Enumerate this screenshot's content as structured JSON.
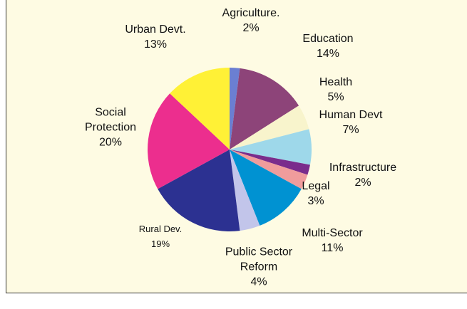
{
  "chart_data": {
    "type": "pie",
    "categories": [
      "Agriculture.",
      "Education",
      "Health",
      "Human Devt",
      "Infrastructure",
      "Legal",
      "Multi-Sector",
      "Public Sector Reform",
      "Rural Dev.",
      "Social Protection",
      "Urban Devt."
    ],
    "values": [
      2,
      14,
      5,
      7,
      2,
      3,
      11,
      4,
      19,
      20,
      13
    ],
    "value_labels": [
      "2%",
      "14%",
      "5%",
      "7%",
      "2%",
      "3%",
      "11%",
      "4%",
      "19%",
      "20%",
      "13%"
    ],
    "colors": [
      "#6b7fd2",
      "#8d4479",
      "#f8f4cc",
      "#9ed8ea",
      "#7a2c8c",
      "#f09c9c",
      "#0092d2",
      "#c2c5ea",
      "#2c3191",
      "#ec2e8e",
      "#fff136"
    ]
  }
}
